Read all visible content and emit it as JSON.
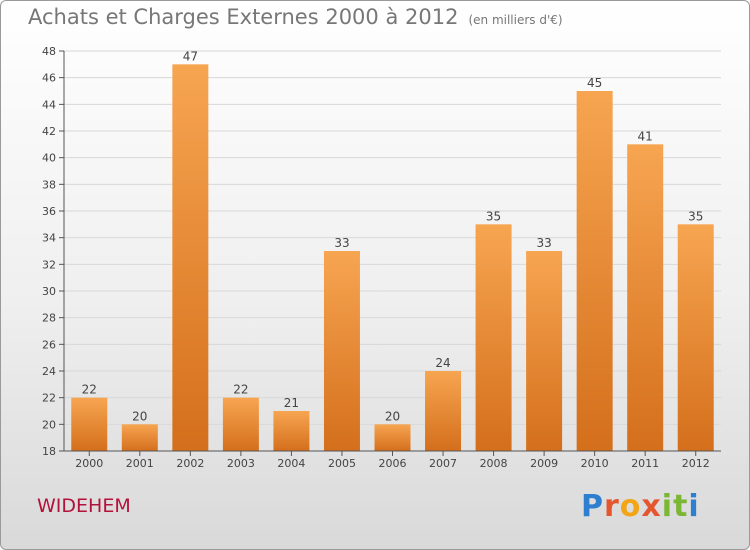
{
  "title": "Achats et Charges Externes 2000 à 2012",
  "unit_note": "(en milliers d'€)",
  "commune": "WIDEHEM",
  "logo_text": "Proxiti",
  "colors": {
    "bar_top": "#f7a551",
    "bar_bottom": "#d46f1c",
    "title": "#777777",
    "commune": "#b3123a",
    "grid": "#d8d8d8"
  },
  "chart_data": {
    "type": "bar",
    "categories": [
      "2000",
      "2001",
      "2002",
      "2003",
      "2004",
      "2005",
      "2006",
      "2007",
      "2008",
      "2009",
      "2010",
      "2011",
      "2012"
    ],
    "values": [
      22,
      20,
      47,
      22,
      21,
      33,
      20,
      24,
      35,
      33,
      45,
      41,
      35
    ],
    "ylim": [
      18,
      48
    ],
    "yticks": [
      18,
      20,
      22,
      24,
      26,
      28,
      30,
      32,
      34,
      36,
      38,
      40,
      42,
      44,
      46,
      48
    ],
    "grid": true,
    "legend": "none"
  }
}
